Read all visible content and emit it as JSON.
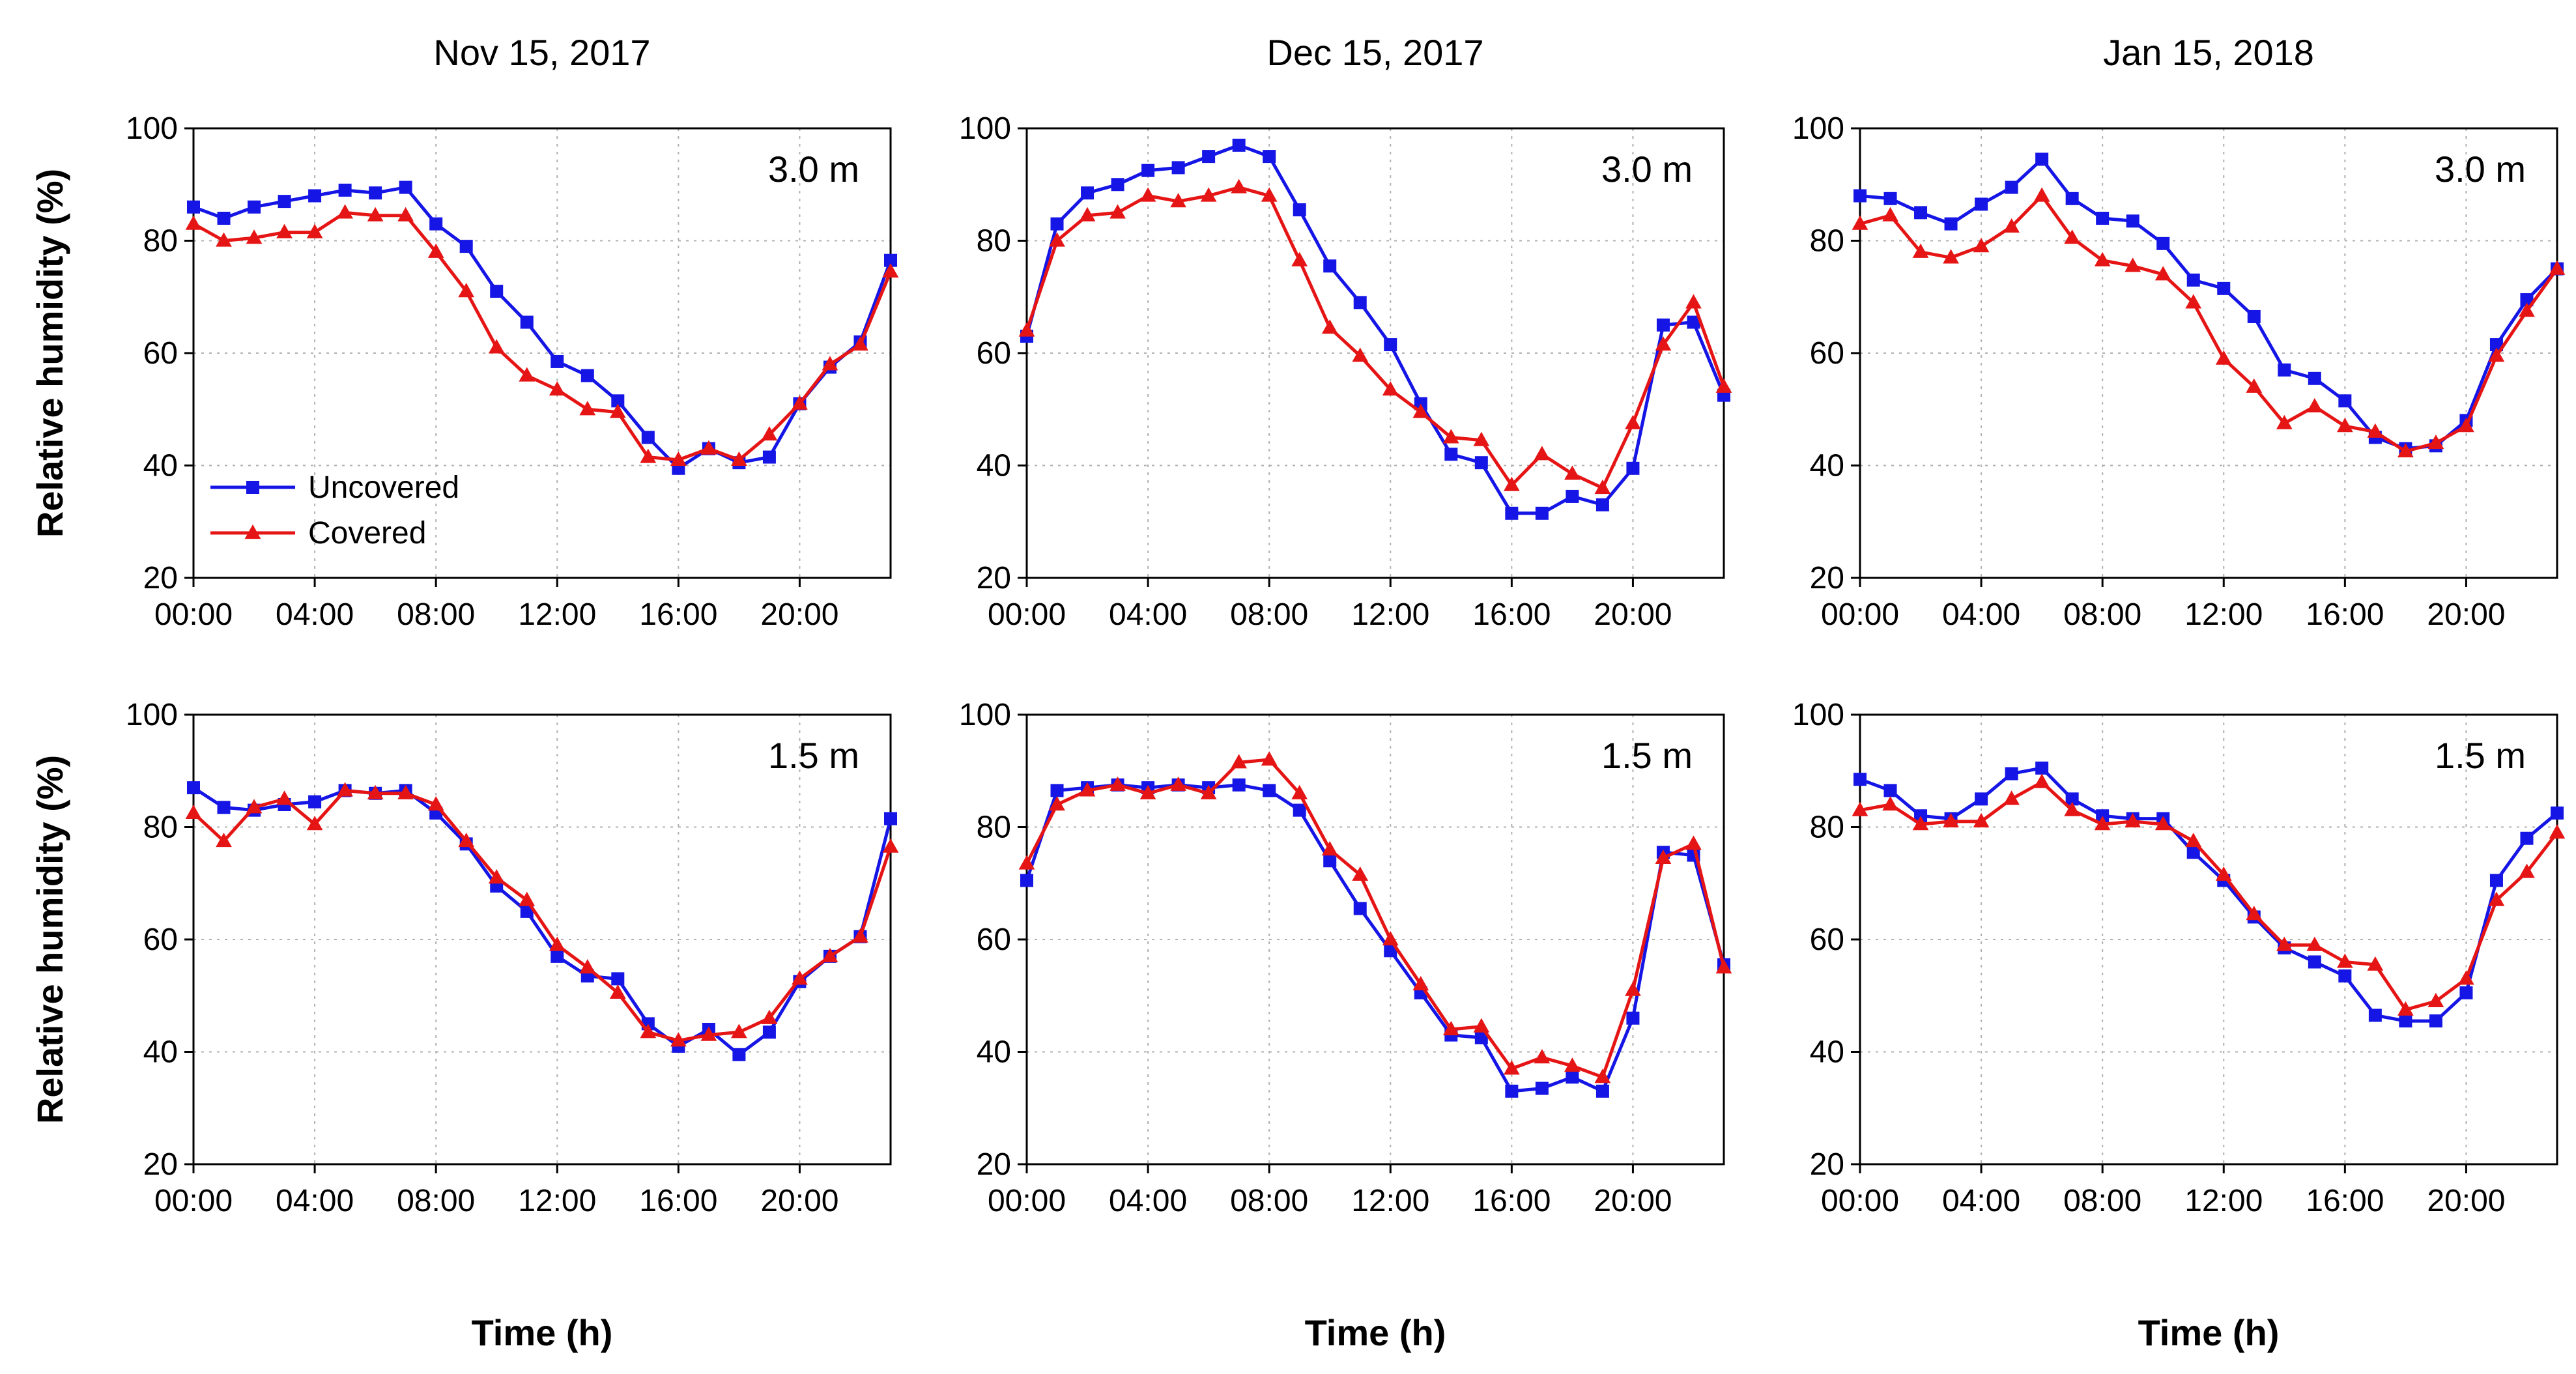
{
  "y_axis_label": "Relative humidity (%)",
  "x_axis_label": "Time (h)",
  "legend": {
    "uncovered": "Uncovered",
    "covered": "Covered"
  },
  "colors": {
    "uncovered": "#1515e6",
    "covered": "#e61515",
    "grid": "#b0b0b0",
    "axis": "#000000"
  },
  "chart_data": {
    "type": "line",
    "x_label": "Time (h)",
    "y_label": "Relative humidity (%)",
    "ylim": [
      20,
      100
    ],
    "yticks": [
      20,
      40,
      60,
      80,
      100
    ],
    "xlim": [
      0,
      23
    ],
    "x_tick_values": [
      0,
      4,
      8,
      12,
      16,
      20
    ],
    "x_tick_labels": [
      "00:00",
      "04:00",
      "08:00",
      "12:00",
      "16:00",
      "20:00"
    ],
    "hours": [
      0,
      1,
      2,
      3,
      4,
      5,
      6,
      7,
      8,
      9,
      10,
      11,
      12,
      13,
      14,
      15,
      16,
      17,
      18,
      19,
      20,
      21,
      22,
      23
    ],
    "columns": [
      "Nov 15, 2017",
      "Dec 15, 2017",
      "Jan 15, 2018"
    ],
    "rows": [
      "3.0 m",
      "1.5 m"
    ],
    "panels": [
      {
        "date": "Nov 15, 2017",
        "height": "3.0 m",
        "series": [
          {
            "name": "Uncovered",
            "values": [
              86,
              84,
              86,
              87,
              88,
              89,
              88.5,
              89.5,
              83,
              79,
              71,
              65.5,
              58.5,
              56,
              51.5,
              45,
              39.5,
              43,
              40.5,
              41.5,
              51,
              57.5,
              62,
              76.5
            ]
          },
          {
            "name": "Covered",
            "values": [
              83,
              80,
              80.5,
              81.5,
              81.5,
              85,
              84.5,
              84.5,
              78,
              71,
              61,
              56,
              53.5,
              50,
              49.5,
              41.5,
              41,
              43,
              41,
              45.5,
              51,
              58,
              61.5,
              74.5
            ]
          }
        ]
      },
      {
        "date": "Dec 15, 2017",
        "height": "3.0 m",
        "series": [
          {
            "name": "Uncovered",
            "values": [
              63,
              83,
              88.5,
              90,
              92.5,
              93,
              95,
              97,
              95,
              85.5,
              75.5,
              69,
              61.5,
              51,
              42,
              40.5,
              31.5,
              31.5,
              34.5,
              33,
              39.5,
              65,
              65.5,
              52.5
            ]
          },
          {
            "name": "Covered",
            "values": [
              64,
              80,
              84.5,
              85,
              88,
              87,
              88,
              89.5,
              88,
              76.5,
              64.5,
              59.5,
              53.5,
              49.5,
              45,
              44.5,
              36.5,
              42,
              38.5,
              36,
              47.5,
              61.5,
              69,
              54
            ]
          }
        ]
      },
      {
        "date": "Jan 15, 2018",
        "height": "3.0 m",
        "series": [
          {
            "name": "Uncovered",
            "values": [
              88,
              87.5,
              85,
              83,
              86.5,
              89.5,
              94.5,
              87.5,
              84,
              83.5,
              79.5,
              73,
              71.5,
              66.5,
              57,
              55.5,
              51.5,
              45,
              43,
              43.5,
              48,
              61.5,
              69.5,
              75
            ]
          },
          {
            "name": "Covered",
            "values": [
              83,
              84.5,
              78,
              77,
              79,
              82.5,
              88,
              80.5,
              76.5,
              75.5,
              74,
              69,
              59,
              54,
              47.5,
              50.5,
              47,
              46,
              42.5,
              44,
              47,
              59.5,
              67.5,
              75
            ]
          }
        ]
      },
      {
        "date": "Nov 15, 2017",
        "height": "1.5 m",
        "series": [
          {
            "name": "Uncovered",
            "values": [
              87,
              83.5,
              83,
              84,
              84.5,
              86.5,
              86,
              86.5,
              82.5,
              77,
              69.5,
              65,
              57,
              53.5,
              53,
              45,
              41,
              44,
              39.5,
              43.5,
              52.5,
              57,
              60.5,
              81.5
            ]
          },
          {
            "name": "Covered",
            "values": [
              82.5,
              77.5,
              83.5,
              85,
              80.5,
              86.5,
              86,
              86,
              84,
              77.5,
              71,
              67,
              59,
              55,
              50.5,
              43.5,
              42,
              43,
              43.5,
              46,
              53,
              57,
              60.5,
              76.5
            ]
          }
        ]
      },
      {
        "date": "Dec 15, 2017",
        "height": "1.5 m",
        "series": [
          {
            "name": "Uncovered",
            "values": [
              70.5,
              86.5,
              87,
              87.5,
              87,
              87.5,
              87,
              87.5,
              86.5,
              83,
              74,
              65.5,
              58,
              50.5,
              43,
              42.5,
              33,
              33.5,
              35.5,
              33,
              46,
              75.5,
              75,
              55.5
            ]
          },
          {
            "name": "Covered",
            "values": [
              73.5,
              84,
              86.5,
              87.5,
              86,
              87.5,
              86,
              91.5,
              92,
              86,
              76,
              71.5,
              60,
              52,
              44,
              44.5,
              37,
              39,
              37.5,
              35.5,
              51,
              74.5,
              77,
              55
            ]
          }
        ]
      },
      {
        "date": "Jan 15, 2018",
        "height": "1.5 m",
        "series": [
          {
            "name": "Uncovered",
            "values": [
              88.5,
              86.5,
              82,
              81.5,
              85,
              89.5,
              90.5,
              85,
              82,
              81.5,
              81.5,
              75.5,
              70.5,
              64,
              58.5,
              56,
              53.5,
              46.5,
              45.5,
              45.5,
              50.5,
              70.5,
              78,
              82.5
            ]
          },
          {
            "name": "Covered",
            "values": [
              83,
              84,
              80.5,
              81,
              81,
              85,
              88,
              83,
              80.5,
              81,
              80.5,
              77.5,
              71.5,
              64.5,
              59,
              59,
              56,
              55.5,
              47.5,
              49,
              53,
              67,
              72,
              79
            ]
          }
        ]
      }
    ]
  }
}
